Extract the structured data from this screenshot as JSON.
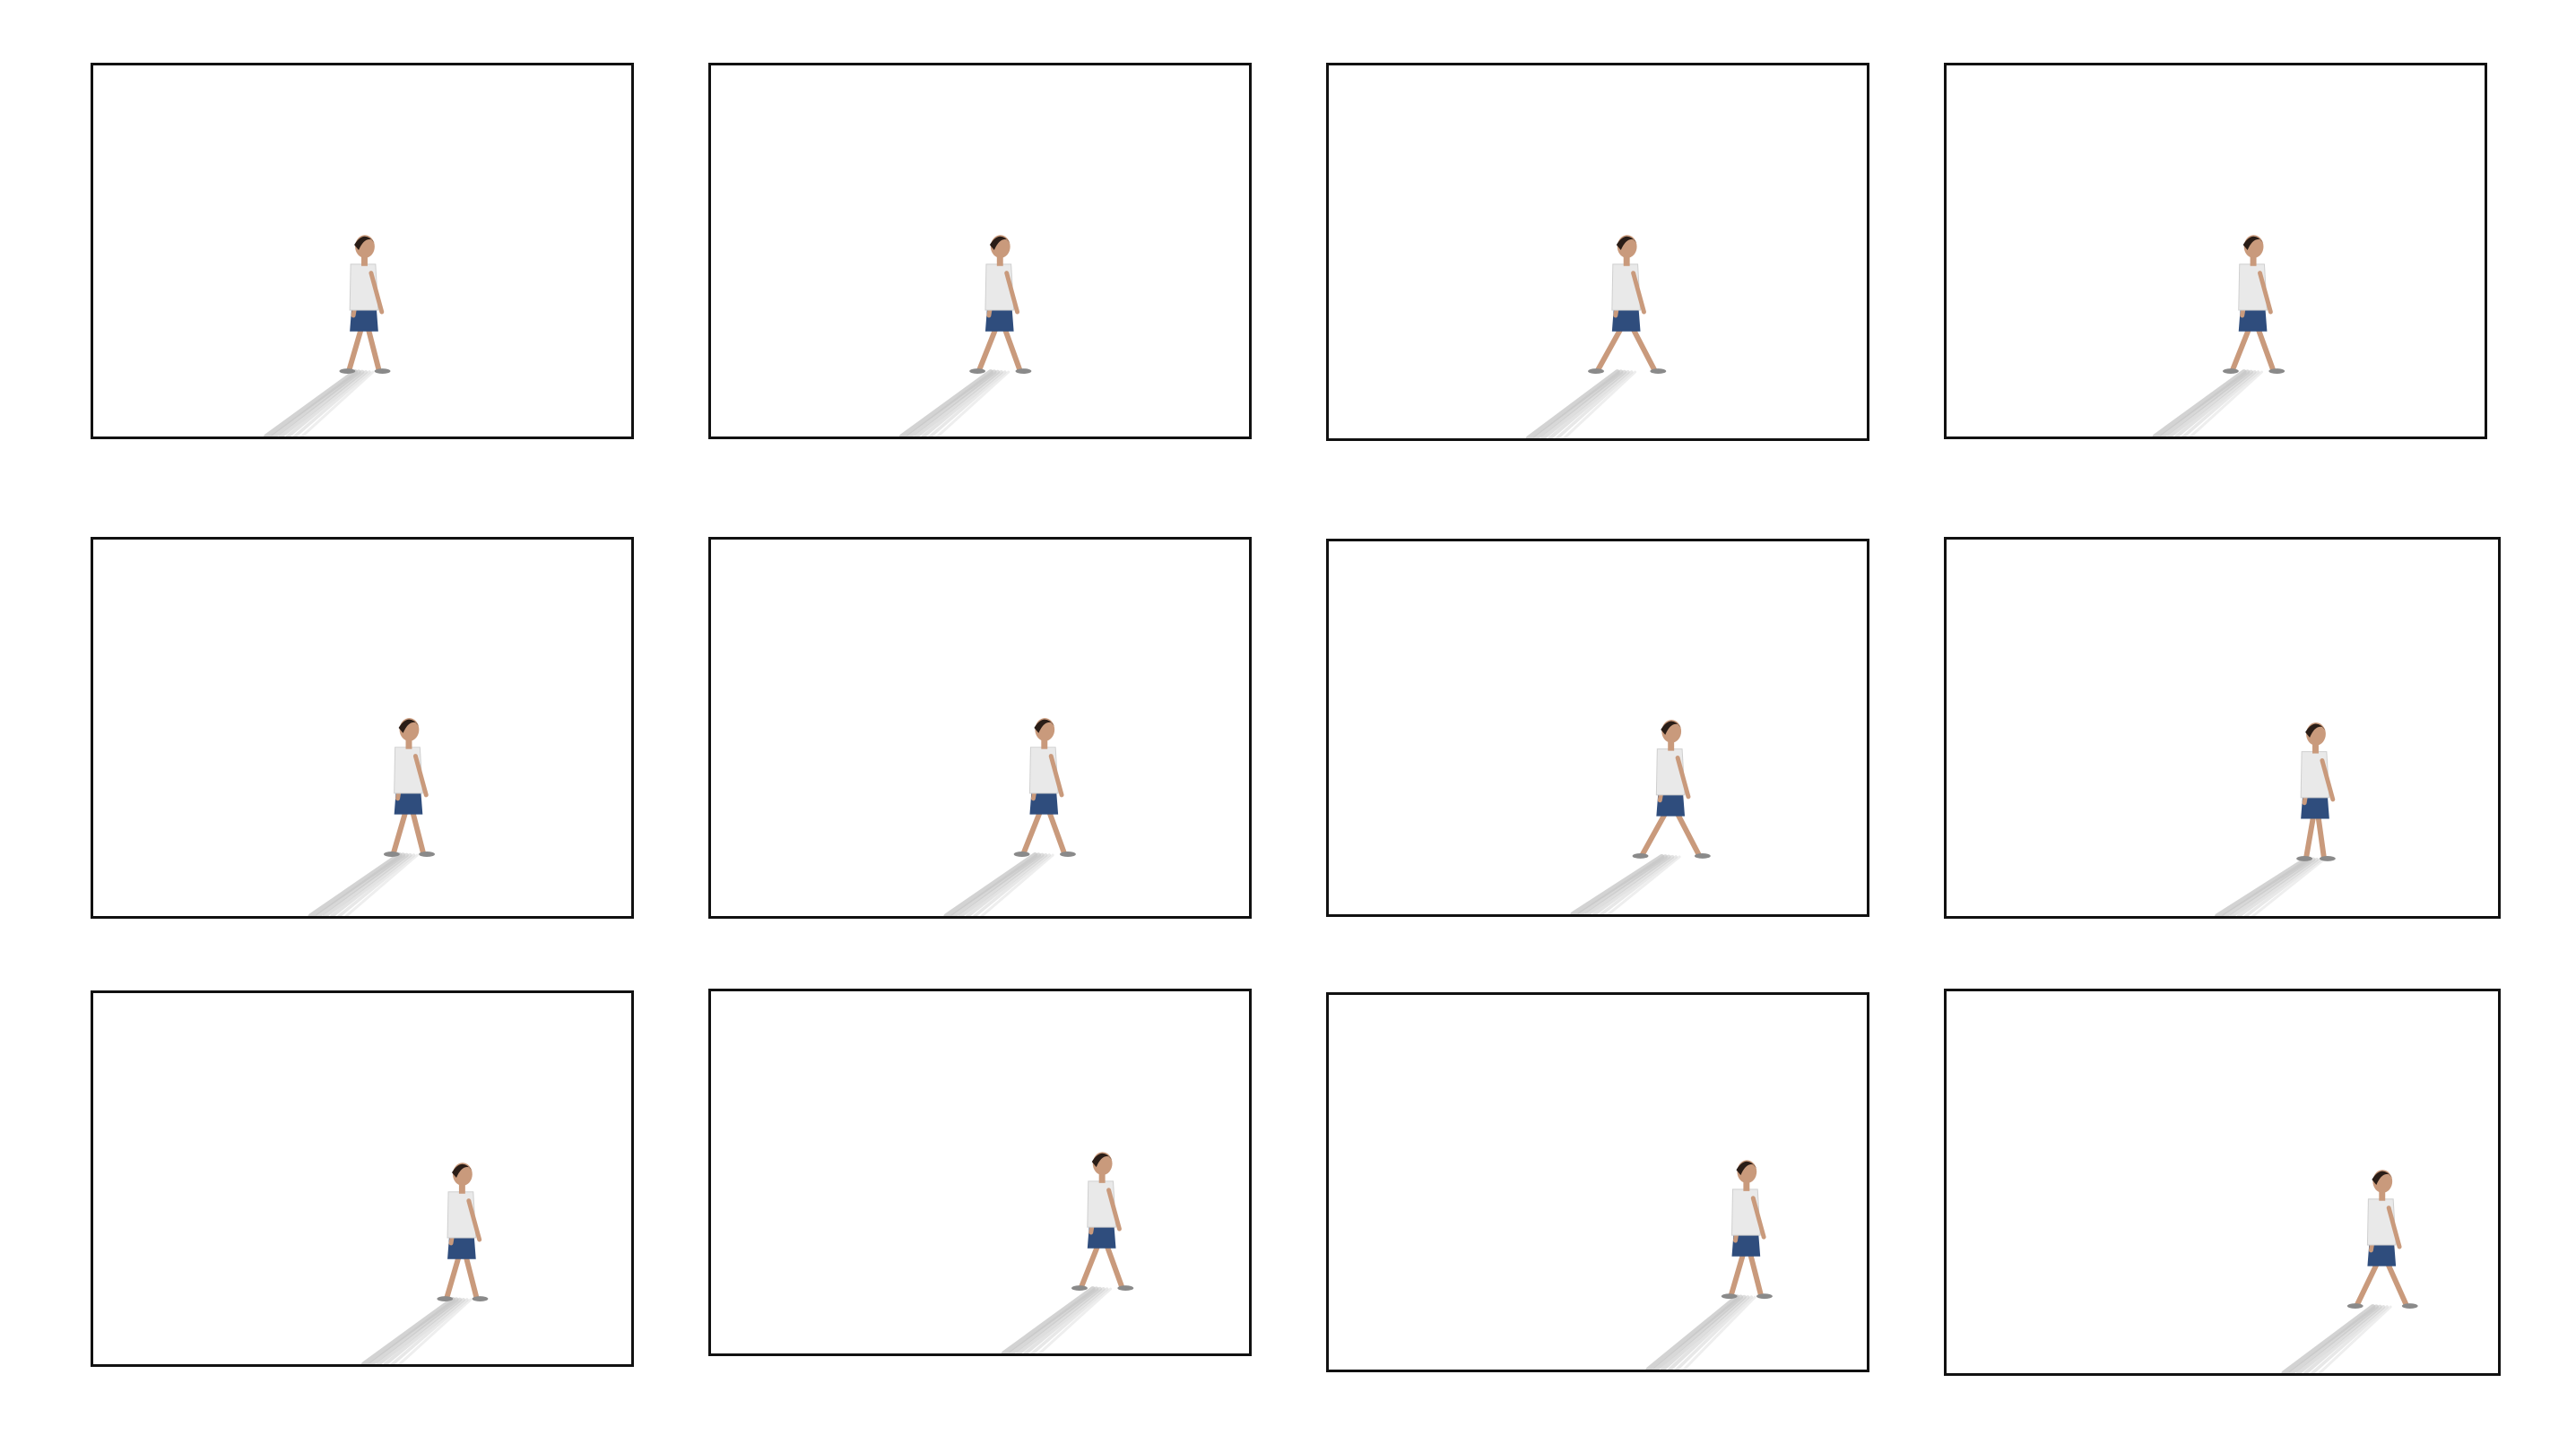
{
  "sheet": {
    "description_visible_text": "",
    "frame_count": 12,
    "colors": {
      "background": "#ffffff",
      "frame_border": "#111111",
      "shirt": "#e9e9e9",
      "shorts": "#2f4d7d",
      "skin": "#c99a7c",
      "hair": "#2a1d17",
      "shadow": "#9a9a9a"
    }
  }
}
